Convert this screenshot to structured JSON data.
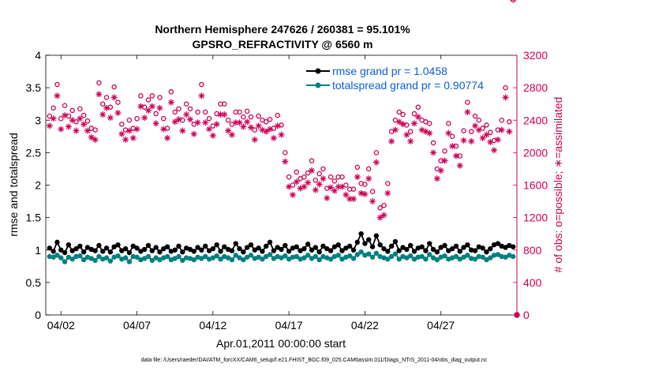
{
  "figure": {
    "title_line1": "Northern Hemisphere 247626 / 260381 = 95.101%",
    "title_line2": "GPSRO_REFRACTIVITY @ 6560 m",
    "footnote": "data file: /Users/raeder/DAI/ATM_forcXX/CAM6_setup/f.e21.FHIST_BGC.f09_025.CAM6assim.011/Diags_NTrS_2011-04/obs_diag_output.nc"
  },
  "colors": {
    "rmse": "#000000",
    "spread": "#008080",
    "obs": "#cc0055",
    "legend_text": "#0b5fd6"
  },
  "chart_data": {
    "type": "line",
    "xlabel": "Apr.01,2011 00:00:00 start",
    "ylabel_left": "rmse and totalspread",
    "ylabel_right": "# of obs: o=possible; ∗=assimilated",
    "xlim": [
      0,
      31
    ],
    "ylim_left": [
      0,
      4
    ],
    "ylim_right": [
      0,
      3200
    ],
    "x_ticks": [
      {
        "label": "04/02",
        "value": 1
      },
      {
        "label": "04/07",
        "value": 6
      },
      {
        "label": "04/12",
        "value": 11
      },
      {
        "label": "04/17",
        "value": 16
      },
      {
        "label": "04/22",
        "value": 21
      },
      {
        "label": "04/27",
        "value": 26
      }
    ],
    "y_ticks_left": [
      "0",
      "0.5",
      "1",
      "1.5",
      "2",
      "2.5",
      "3",
      "3.5",
      "4"
    ],
    "y_ticks_right": [
      "0",
      "400",
      "800",
      "1200",
      "1600",
      "2000",
      "2400",
      "2800",
      "3200"
    ],
    "legend_placement": "top-right",
    "x": [
      0.25,
      0.5,
      0.75,
      1,
      1.25,
      1.5,
      1.75,
      2,
      2.25,
      2.5,
      2.75,
      3,
      3.25,
      3.5,
      3.75,
      4,
      4.25,
      4.5,
      4.75,
      5,
      5.25,
      5.5,
      5.75,
      6,
      6.25,
      6.5,
      6.75,
      7,
      7.25,
      7.5,
      7.75,
      8,
      8.25,
      8.5,
      8.75,
      9,
      9.25,
      9.5,
      9.75,
      10,
      10.25,
      10.5,
      10.75,
      11,
      11.25,
      11.5,
      11.75,
      12,
      12.25,
      12.5,
      12.75,
      13,
      13.25,
      13.5,
      13.75,
      14,
      14.25,
      14.5,
      14.75,
      15,
      15.25,
      15.5,
      15.75,
      16,
      16.25,
      16.5,
      16.75,
      17,
      17.25,
      17.5,
      17.75,
      18,
      18.25,
      18.5,
      18.75,
      19,
      19.25,
      19.5,
      19.75,
      20,
      20.25,
      20.5,
      20.75,
      21,
      21.25,
      21.5,
      21.75,
      22,
      22.25,
      22.5,
      22.75,
      23,
      23.25,
      23.5,
      23.75,
      24,
      24.25,
      24.5,
      24.75,
      25,
      25.25,
      25.5,
      25.75,
      26,
      26.25,
      26.5,
      26.75,
      27,
      27.25,
      27.5,
      27.75,
      28,
      28.25,
      28.5,
      28.75,
      29,
      29.25,
      29.5,
      29.75,
      30,
      30.25,
      30.5,
      30.75
    ],
    "series": [
      {
        "name": "rmse grand pr = 1.0458",
        "key": "rmse",
        "values": [
          1.03,
          0.98,
          1.12,
          1.0,
          0.96,
          1.08,
          0.99,
          1.02,
          1.06,
          0.97,
          1.04,
          1.01,
          0.99,
          1.07,
          0.98,
          1.03,
          0.97,
          1.05,
          1.08,
          0.99,
          1.02,
          0.96,
          1.06,
          1.03,
          0.98,
          1.01,
          1.07,
          0.99,
          1.04,
          0.97,
          1.02,
          1.05,
          0.98,
          1.0,
          1.06,
          0.97,
          1.03,
          1.01,
          0.98,
          1.04,
          1.0,
          1.06,
          0.99,
          1.02,
          1.08,
          0.98,
          1.05,
          1.01,
          0.99,
          1.1,
          1.02,
          0.97,
          1.04,
          1.08,
          1.0,
          1.03,
          0.98,
          1.06,
          1.12,
          0.99,
          1.04,
          1.01,
          1.07,
          0.98,
          1.03,
          1.05,
          0.99,
          1.02,
          1.09,
          1.0,
          1.04,
          0.97,
          1.06,
          1.02,
          0.99,
          1.05,
          1.08,
          0.99,
          1.03,
          1.06,
          1.0,
          1.12,
          1.25,
          1.1,
          1.16,
          1.05,
          1.22,
          1.08,
          1.02,
          0.98,
          1.06,
          1.13,
          0.99,
          1.04,
          1.01,
          1.07,
          0.98,
          1.03,
          1.05,
          0.99,
          1.1,
          1.01,
          0.97,
          1.04,
          1.07,
          0.99,
          1.02,
          1.06,
          0.98,
          1.04,
          1.08,
          1.0,
          0.99,
          1.05,
          1.03,
          0.97,
          1.02,
          1.08,
          1.1,
          1.06,
          1.04,
          1.07,
          1.05
        ],
        "values_approx": true
      },
      {
        "name": "totalspread grand pr = 0.90774",
        "key": "spread",
        "values": [
          0.9,
          0.89,
          0.92,
          0.88,
          0.82,
          0.89,
          0.86,
          0.9,
          0.91,
          0.85,
          0.89,
          0.87,
          0.84,
          0.9,
          0.86,
          0.88,
          0.83,
          0.89,
          0.91,
          0.86,
          0.88,
          0.82,
          0.9,
          0.89,
          0.85,
          0.87,
          0.9,
          0.84,
          0.88,
          0.85,
          0.88,
          0.9,
          0.85,
          0.87,
          0.9,
          0.84,
          0.88,
          0.87,
          0.85,
          0.89,
          0.87,
          0.9,
          0.86,
          0.88,
          0.91,
          0.86,
          0.9,
          0.88,
          0.85,
          0.92,
          0.88,
          0.85,
          0.89,
          0.92,
          0.87,
          0.89,
          0.86,
          0.9,
          0.93,
          0.87,
          0.9,
          0.88,
          0.91,
          0.86,
          0.89,
          0.9,
          0.86,
          0.88,
          0.92,
          0.87,
          0.9,
          0.85,
          0.9,
          0.88,
          0.86,
          0.9,
          0.92,
          0.86,
          0.89,
          0.91,
          0.87,
          0.93,
          0.97,
          0.92,
          0.94,
          0.89,
          0.95,
          0.9,
          0.88,
          0.86,
          0.9,
          0.94,
          0.86,
          0.9,
          0.88,
          0.91,
          0.86,
          0.89,
          0.9,
          0.86,
          0.93,
          0.88,
          0.85,
          0.89,
          0.91,
          0.86,
          0.88,
          0.9,
          0.86,
          0.89,
          0.92,
          0.87,
          0.86,
          0.9,
          0.89,
          0.85,
          0.88,
          0.92,
          0.93,
          0.9,
          0.89,
          0.92,
          0.9
        ],
        "values_approx": true
      }
    ],
    "obs_possible": [
      2450,
      2550,
      2840,
      2420,
      2580,
      2450,
      2520,
      2380,
      2540,
      2460,
      2390,
      2300,
      2280,
      2860,
      2600,
      2680,
      2560,
      2810,
      2620,
      2350,
      2280,
      2400,
      2300,
      2420,
      2700,
      2560,
      2650,
      2700,
      2480,
      2680,
      2420,
      2300,
      2750,
      2500,
      2540,
      2400,
      2600,
      2540,
      2350,
      2500,
      2840,
      2500,
      2420,
      2330,
      2480,
      2600,
      2600,
      2400,
      2350,
      2500,
      2500,
      2440,
      2510,
      2440,
      2280,
      2450,
      2400,
      2380,
      2410,
      2300,
      2460,
      2340,
      2000,
      1700,
      1600,
      1760,
      1680,
      1700,
      1750,
      1900,
      1660,
      1740,
      1800,
      1560,
      1700,
      1650,
      1700,
      1700,
      1600,
      1550,
      1550,
      1820,
      1620,
      1610,
      1800,
      1520,
      2000,
      1320,
      1350,
      1620,
      2260,
      2400,
      2500,
      2470,
      2340,
      2260,
      2480,
      2560,
      2400,
      2380,
      2360,
      2120,
      1800,
      1900,
      2020,
      2360,
      2200,
      2080,
      1960,
      2270,
      2620,
      2260,
      2450,
      2400,
      2300,
      2340,
      2250,
      2150,
      2280,
      2400,
      2800,
      2380
    ],
    "obs_assimilated": [
      2330,
      2420,
      2700,
      2290,
      2460,
      2320,
      2400,
      2270,
      2420,
      2350,
      2270,
      2190,
      2160,
      2720,
      2470,
      2550,
      2430,
      2680,
      2490,
      2230,
      2160,
      2270,
      2180,
      2290,
      2570,
      2430,
      2520,
      2570,
      2360,
      2550,
      2290,
      2180,
      2620,
      2380,
      2410,
      2270,
      2470,
      2410,
      2230,
      2370,
      2700,
      2370,
      2290,
      2210,
      2350,
      2470,
      2470,
      2270,
      2220,
      2370,
      2370,
      2320,
      2380,
      2310,
      2160,
      2330,
      2280,
      2260,
      2290,
      2180,
      2330,
      2220,
      1890,
      1580,
      1480,
      1640,
      1560,
      1580,
      1630,
      1780,
      1540,
      1610,
      1680,
      1440,
      1570,
      1530,
      1580,
      1580,
      1480,
      1430,
      1430,
      1700,
      1500,
      1490,
      1680,
      1400,
      1880,
      1200,
      1230,
      1500,
      2140,
      2280,
      2380,
      2350,
      2220,
      2140,
      2360,
      2440,
      2280,
      2260,
      2240,
      2000,
      1680,
      1780,
      1900,
      2240,
      2080,
      1960,
      1840,
      2150,
      2500,
      2140,
      2330,
      2280,
      2180,
      2220,
      2130,
      2030,
      2160,
      2280,
      2680,
      2260
    ],
    "obs_values_approx": true
  }
}
